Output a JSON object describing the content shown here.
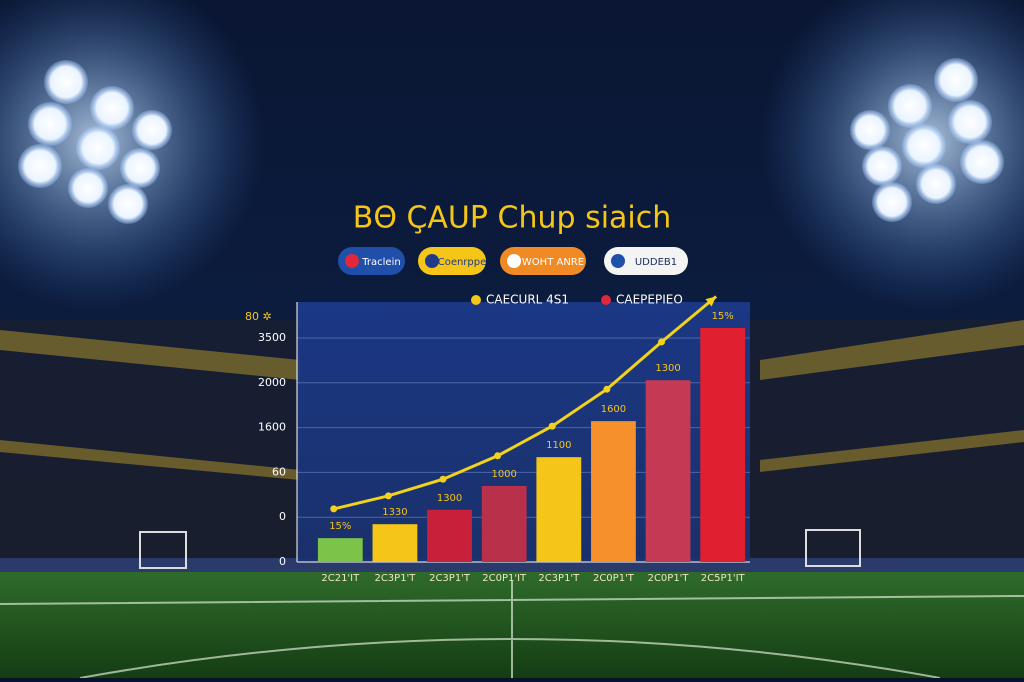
{
  "chart_data": {
    "type": "bar",
    "title": "BΘ ÇAUP Chup siaich",
    "badges": [
      {
        "label": "Traclein",
        "color": "#1f4fa8",
        "text_color": "#ffffff"
      },
      {
        "label": "Coenrppe",
        "color": "#f5c518",
        "text_color": "#1f3b8a"
      },
      {
        "label": "WOHT ANRE",
        "color": "#f08a24",
        "text_color": "#ffffff"
      },
      {
        "label": "UDDEB1",
        "color": "#f4f4f4",
        "text_color": "#1a2a55"
      }
    ],
    "legend": [
      {
        "name": "CAECURL 4S1",
        "color": "#f5c518"
      },
      {
        "name": "CAEPEPIEO",
        "color": "#e0283a"
      }
    ],
    "y_axis_title": "80 ✲",
    "y_labels": [
      "3500",
      "2000",
      "1600",
      "60",
      "0",
      "0"
    ],
    "ylim": [
      0,
      6
    ],
    "categories": [
      "2C21'IT",
      "2C3P1'T",
      "2C3P1'T",
      "2C0P1'IT",
      "2C3P1'T",
      "2C0P1'T",
      "2C0P1'T",
      "2C5P1'IT"
    ],
    "bars": {
      "colors": [
        "#7cc34a",
        "#f5c518",
        "#c8203a",
        "#b8304a",
        "#f5c518",
        "#f5902a",
        "#c43a55",
        "#e02030"
      ],
      "values": [
        0.53,
        0.84,
        1.16,
        1.69,
        2.33,
        3.13,
        4.04,
        5.2
      ]
    },
    "bar_annotations": [
      "15%",
      "1330",
      "1300",
      "1000",
      "1100",
      "1600",
      "1300",
      "15%"
    ],
    "line": {
      "color": "#f2d21b",
      "values": [
        1.18,
        1.47,
        1.84,
        2.36,
        3.02,
        3.84,
        4.89,
        5.9
      ]
    }
  }
}
